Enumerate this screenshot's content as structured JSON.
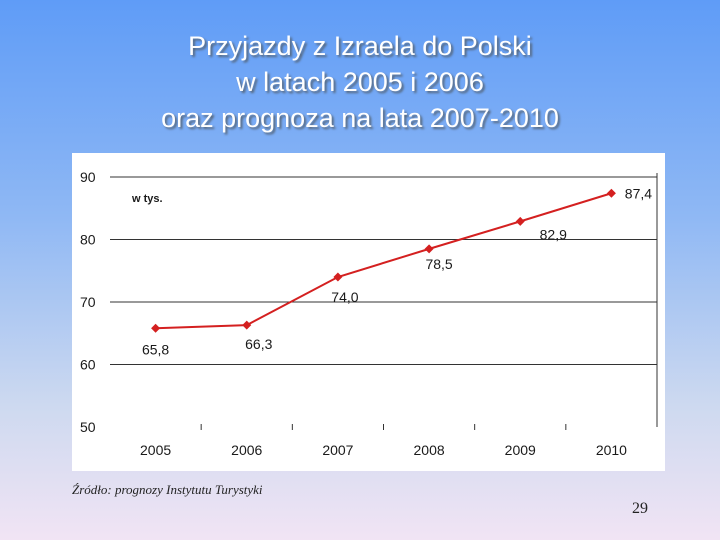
{
  "slide": {
    "title_lines": [
      "Przyjazdy z Izraela do Polski",
      "w latach 2005 i 2006",
      "oraz prognoza na lata 2007-2010"
    ],
    "source": "Źródło: prognozy Instytutu Turystyki",
    "page_number": "29"
  },
  "chart_data": {
    "type": "line",
    "title": "",
    "xlabel": "",
    "ylabel": "",
    "unit_label": "w tys.",
    "categories": [
      "2005",
      "2006",
      "2007",
      "2008",
      "2009",
      "2010"
    ],
    "series": [
      {
        "values": [
          65.8,
          66.3,
          74.0,
          78.5,
          82.9,
          87.4
        ]
      }
    ],
    "data_labels": [
      "65,8",
      "66,3",
      "74,0",
      "78,5",
      "82,9",
      "87,4"
    ],
    "yticks": [
      "50",
      "60",
      "70",
      "80",
      "90"
    ],
    "ylim": [
      50,
      90
    ],
    "grid": false,
    "legend": "none",
    "line_color": "#d42020",
    "marker_color": "#d42020"
  }
}
